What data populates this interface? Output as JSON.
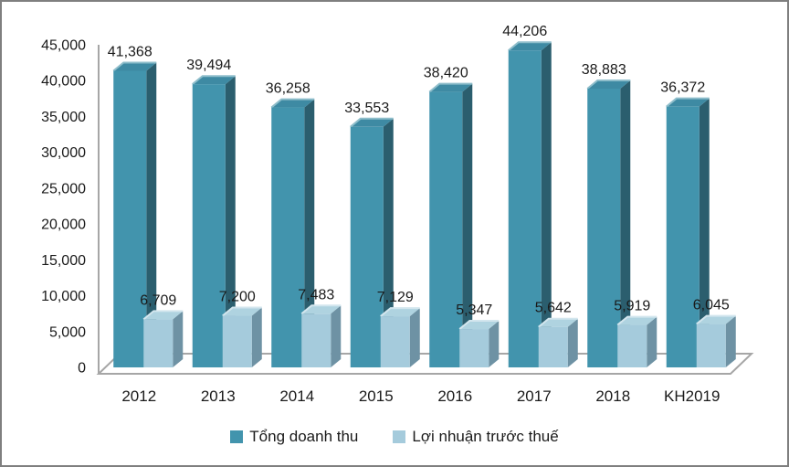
{
  "chart_data": {
    "type": "bar",
    "variant": "3d-clustered-column",
    "title": "",
    "categories": [
      "2012",
      "2013",
      "2014",
      "2015",
      "2016",
      "2017",
      "2018",
      "KH2019"
    ],
    "series": [
      {
        "name": "Tổng doanh thu",
        "values": [
          41368,
          39494,
          36258,
          33553,
          38420,
          44206,
          38883,
          36372
        ],
        "labels": [
          "41,368",
          "39,494",
          "36,258",
          "33,553",
          "38,420",
          "44,206",
          "38,883",
          "36,372"
        ],
        "color": "#4294AD",
        "side_color": "#2B5E6E",
        "top_color": "#3E8AA3",
        "highlight_color": "#8FBECB"
      },
      {
        "name": "Lợi nhuận trước thuế",
        "values": [
          6709,
          7200,
          7483,
          7129,
          5347,
          5642,
          5919,
          6045
        ],
        "labels": [
          "6,709",
          "7,200",
          "7,483",
          "7,129",
          "5,347",
          "5,642",
          "5,919",
          "6,045"
        ],
        "color": "#A5CBDC",
        "side_color": "#6E92A4",
        "top_color": "#AFD3E0",
        "highlight_color": "#D3E6EE"
      }
    ],
    "y_axis": {
      "min": 0,
      "max": 45000,
      "step": 5000,
      "tick_labels": [
        "0",
        "5,000",
        "10,000",
        "15,000",
        "20,000",
        "25,000",
        "30,000",
        "35,000",
        "40,000",
        "45,000"
      ]
    },
    "x_axis": {
      "tick_labels": [
        "2012",
        "2013",
        "2014",
        "2015",
        "2016",
        "2017",
        "2018",
        "KH2019"
      ]
    },
    "legend": {
      "position": "bottom",
      "entries": [
        "Tổng doanh thu",
        "Lợi nhuận trước thuế"
      ]
    },
    "grid": false,
    "axis_color": "#A6A6A6",
    "text_color": "#1A1A1A",
    "background": "#FFFFFF",
    "frame_border_color": "#7F7F7F"
  }
}
